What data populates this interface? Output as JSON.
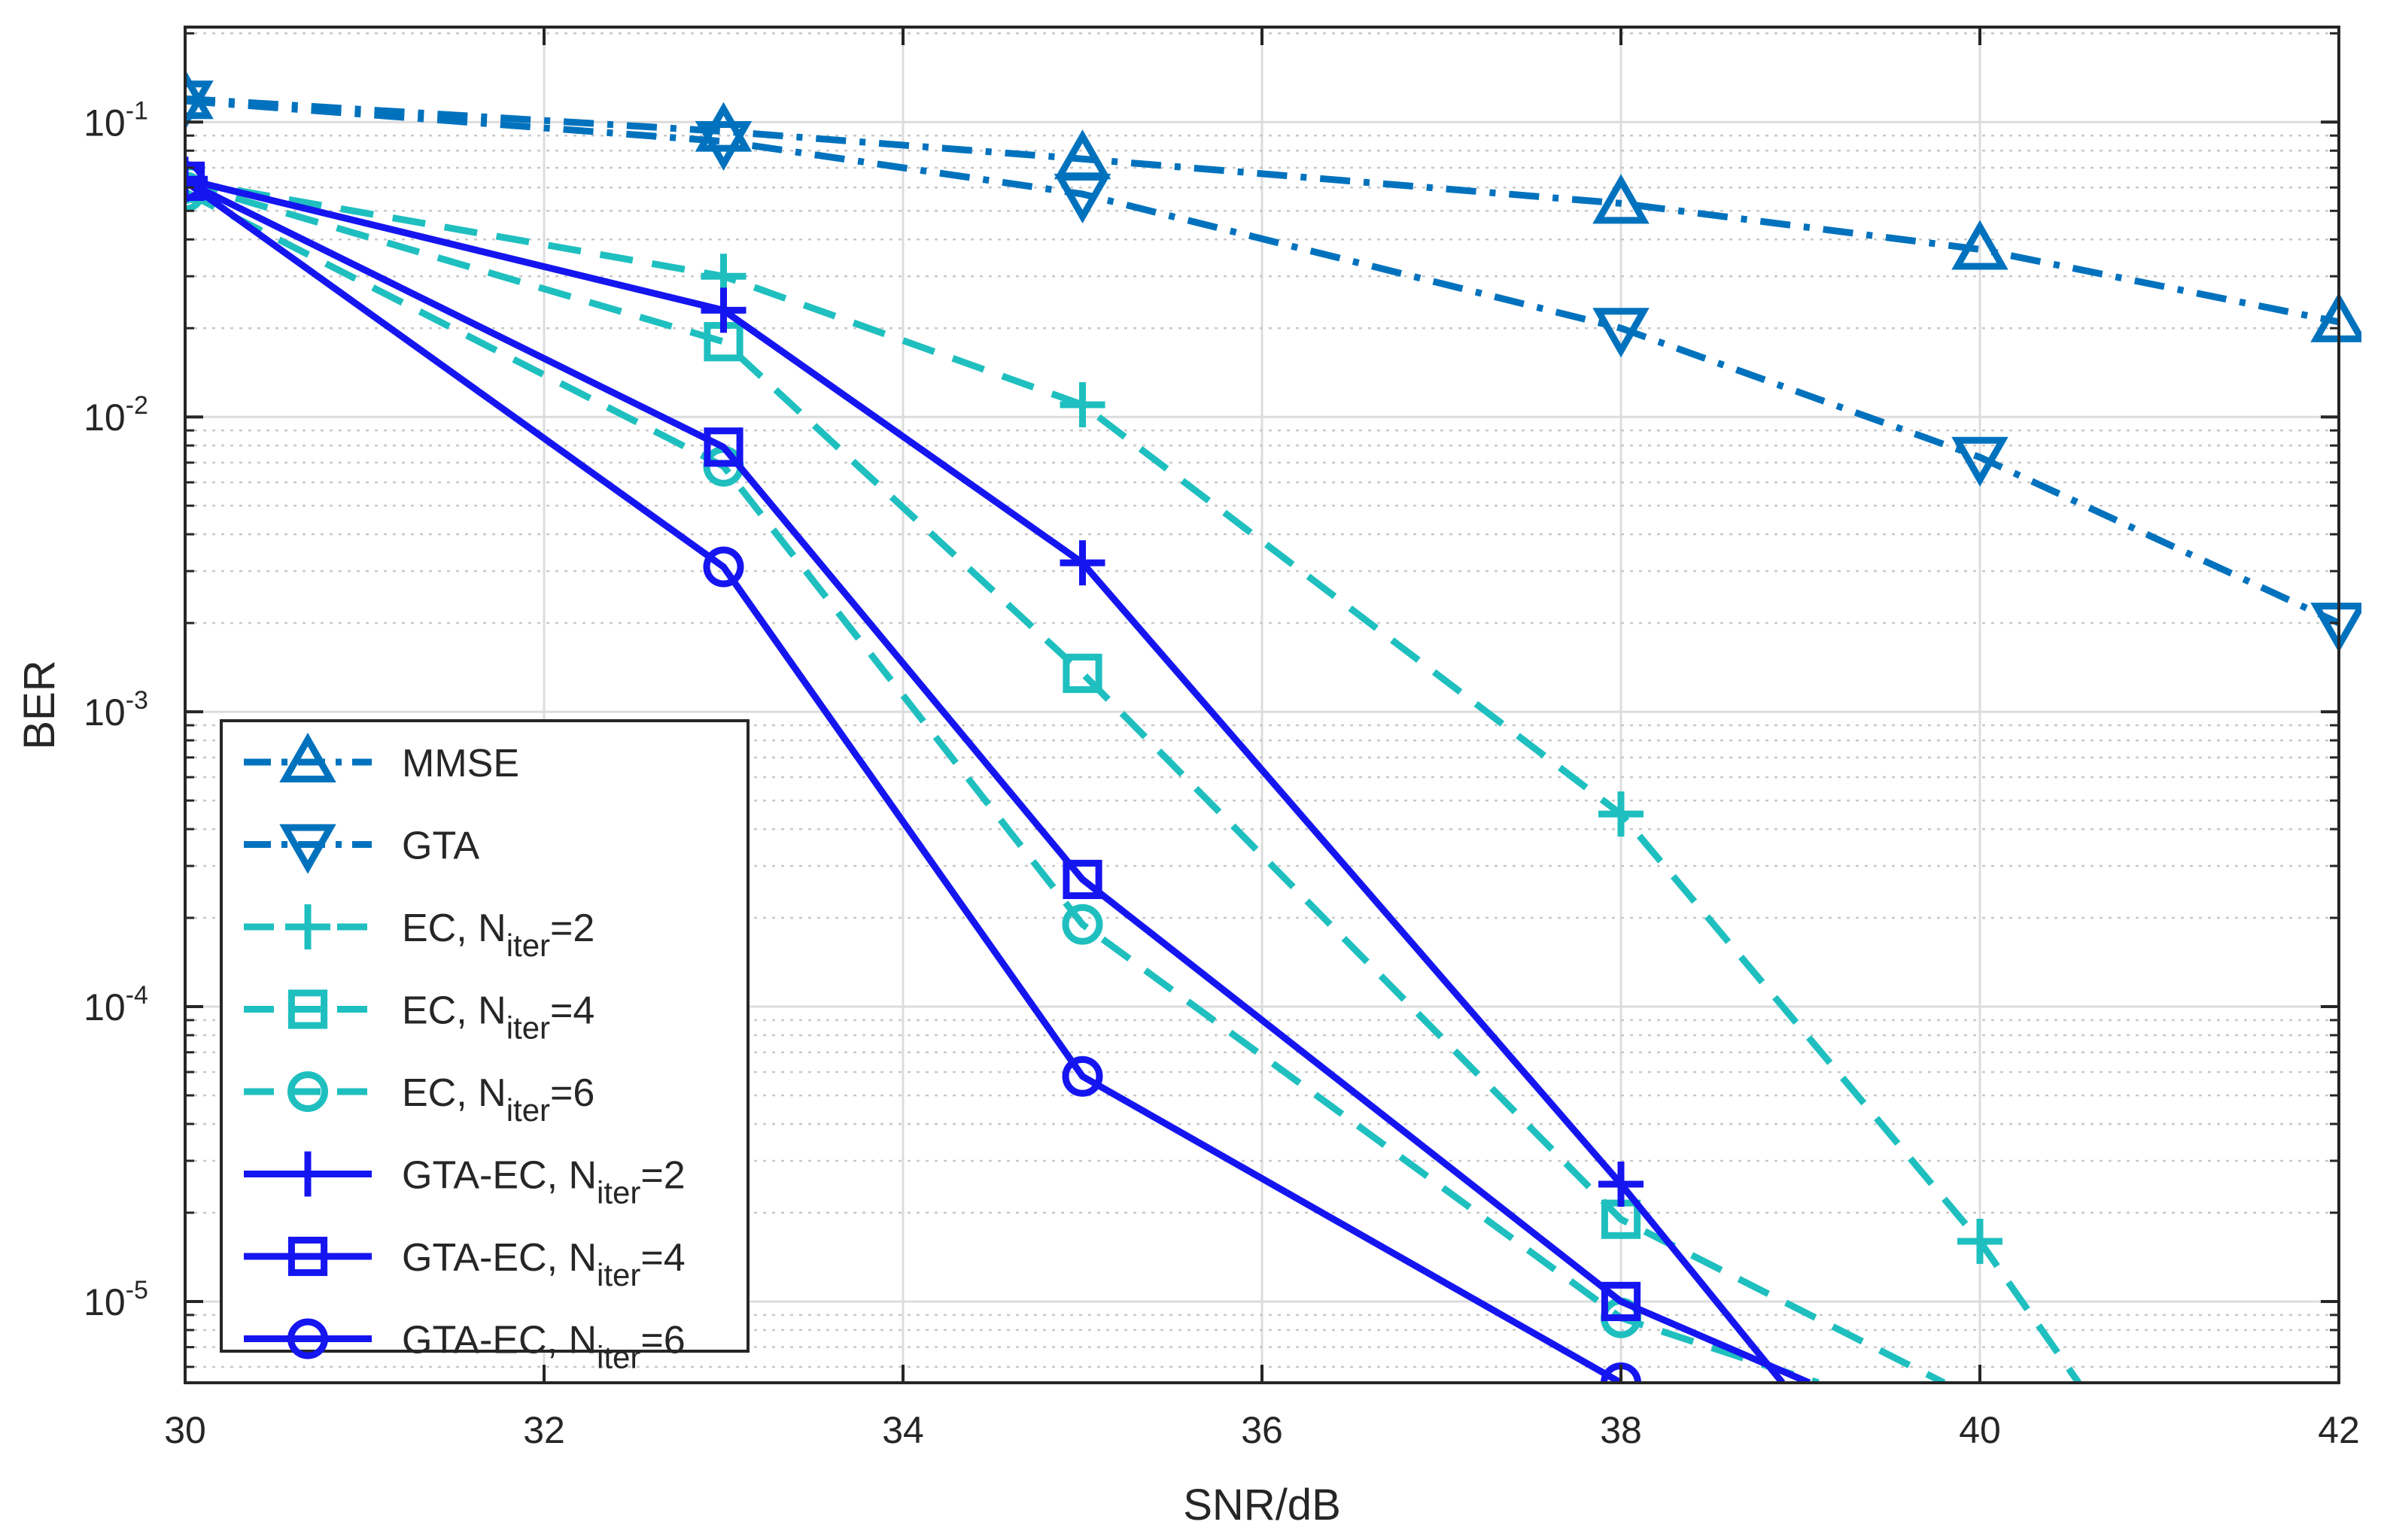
{
  "colors": {
    "mmse": "#0072BD",
    "gta": "#0072BD",
    "ec": "#1FBFBF",
    "gtaec": "#1515F0",
    "grid": "#dcdcdc",
    "axis": "#262626"
  },
  "chart_data": {
    "type": "line",
    "xlabel": "SNR/dB",
    "ylabel": "BER",
    "xlim": [
      30,
      42
    ],
    "ylim": [
      5.3e-06,
      0.21
    ],
    "yscale": "log",
    "xticks": [
      30,
      32,
      34,
      36,
      38,
      40,
      42
    ],
    "xtick_labels": [
      "30",
      "32",
      "34",
      "36",
      "38",
      "40",
      "42"
    ],
    "yticks": [
      {
        "value": 0.1,
        "base": "10",
        "exp": "-1"
      },
      {
        "value": 0.01,
        "base": "10",
        "exp": "-2"
      },
      {
        "value": 0.001,
        "base": "10",
        "exp": "-3"
      },
      {
        "value": 0.0001,
        "base": "10",
        "exp": "-4"
      },
      {
        "value": 1e-05,
        "base": "10",
        "exp": "-5"
      }
    ],
    "grid": true,
    "legend_position": "bottom-left",
    "series": [
      {
        "name": "MMSE",
        "label_main": "MMSE",
        "label_sub": "",
        "label_tail": "",
        "style": "dashdot",
        "marker": "triangle-up",
        "color_key": "mmse",
        "x": [
          30,
          33,
          35,
          38,
          40,
          42
        ],
        "y": [
          0.12,
          0.093,
          0.075,
          0.053,
          0.037,
          0.021
        ]
      },
      {
        "name": "GTA",
        "label_main": "GTA",
        "label_sub": "",
        "label_tail": "",
        "style": "dashdot",
        "marker": "triangle-down",
        "color_key": "gta",
        "x": [
          30,
          33,
          35,
          38,
          40,
          42
        ],
        "y": [
          0.118,
          0.086,
          0.057,
          0.02,
          0.0073,
          0.002
        ]
      },
      {
        "name": "EC, N_iter=2",
        "label_main": "EC, N",
        "label_sub": "iter",
        "label_tail": "=2",
        "style": "dashed",
        "marker": "plus",
        "color_key": "ec",
        "x": [
          30,
          33,
          35,
          38,
          40,
          40.55
        ],
        "y": [
          0.063,
          0.03,
          0.011,
          0.00045,
          1.6e-05,
          5.3e-06
        ]
      },
      {
        "name": "EC, N_iter=4",
        "label_main": "EC, N",
        "label_sub": "iter",
        "label_tail": "=4",
        "style": "dashed",
        "marker": "square",
        "color_key": "ec",
        "x": [
          30,
          33,
          35,
          38,
          39.8
        ],
        "y": [
          0.062,
          0.018,
          0.00135,
          1.9e-05,
          5.3e-06
        ]
      },
      {
        "name": "EC, N_iter=6",
        "label_main": "EC, N",
        "label_sub": "iter",
        "label_tail": "=6",
        "style": "dashed",
        "marker": "circle",
        "color_key": "ec",
        "x": [
          30,
          33,
          35,
          38,
          39.1
        ],
        "y": [
          0.058,
          0.0068,
          0.00019,
          8.8e-06,
          5.3e-06
        ]
      },
      {
        "name": "GTA-EC, N_iter=2",
        "label_main": "GTA-EC, N",
        "label_sub": "iter",
        "label_tail": "=2",
        "style": "solid",
        "marker": "plus",
        "color_key": "gtaec",
        "x": [
          30,
          33,
          35,
          38,
          38.9
        ],
        "y": [
          0.064,
          0.023,
          0.0032,
          2.5e-05,
          5.3e-06
        ]
      },
      {
        "name": "GTA-EC, N_iter=4",
        "label_main": "GTA-EC, N",
        "label_sub": "iter",
        "label_tail": "=4",
        "style": "solid",
        "marker": "square",
        "color_key": "gtaec",
        "x": [
          30,
          33,
          35,
          38,
          39.05
        ],
        "y": [
          0.063,
          0.0079,
          0.00027,
          1e-05,
          5.3e-06
        ]
      },
      {
        "name": "GTA-EC, N_iter=6",
        "label_main": "GTA-EC, N",
        "label_sub": "iter",
        "label_tail": "=6",
        "style": "solid",
        "marker": "circle",
        "color_key": "gtaec",
        "x": [
          30,
          33,
          35,
          38
        ],
        "y": [
          0.063,
          0.0031,
          5.8e-05,
          5.3e-06
        ]
      }
    ]
  }
}
